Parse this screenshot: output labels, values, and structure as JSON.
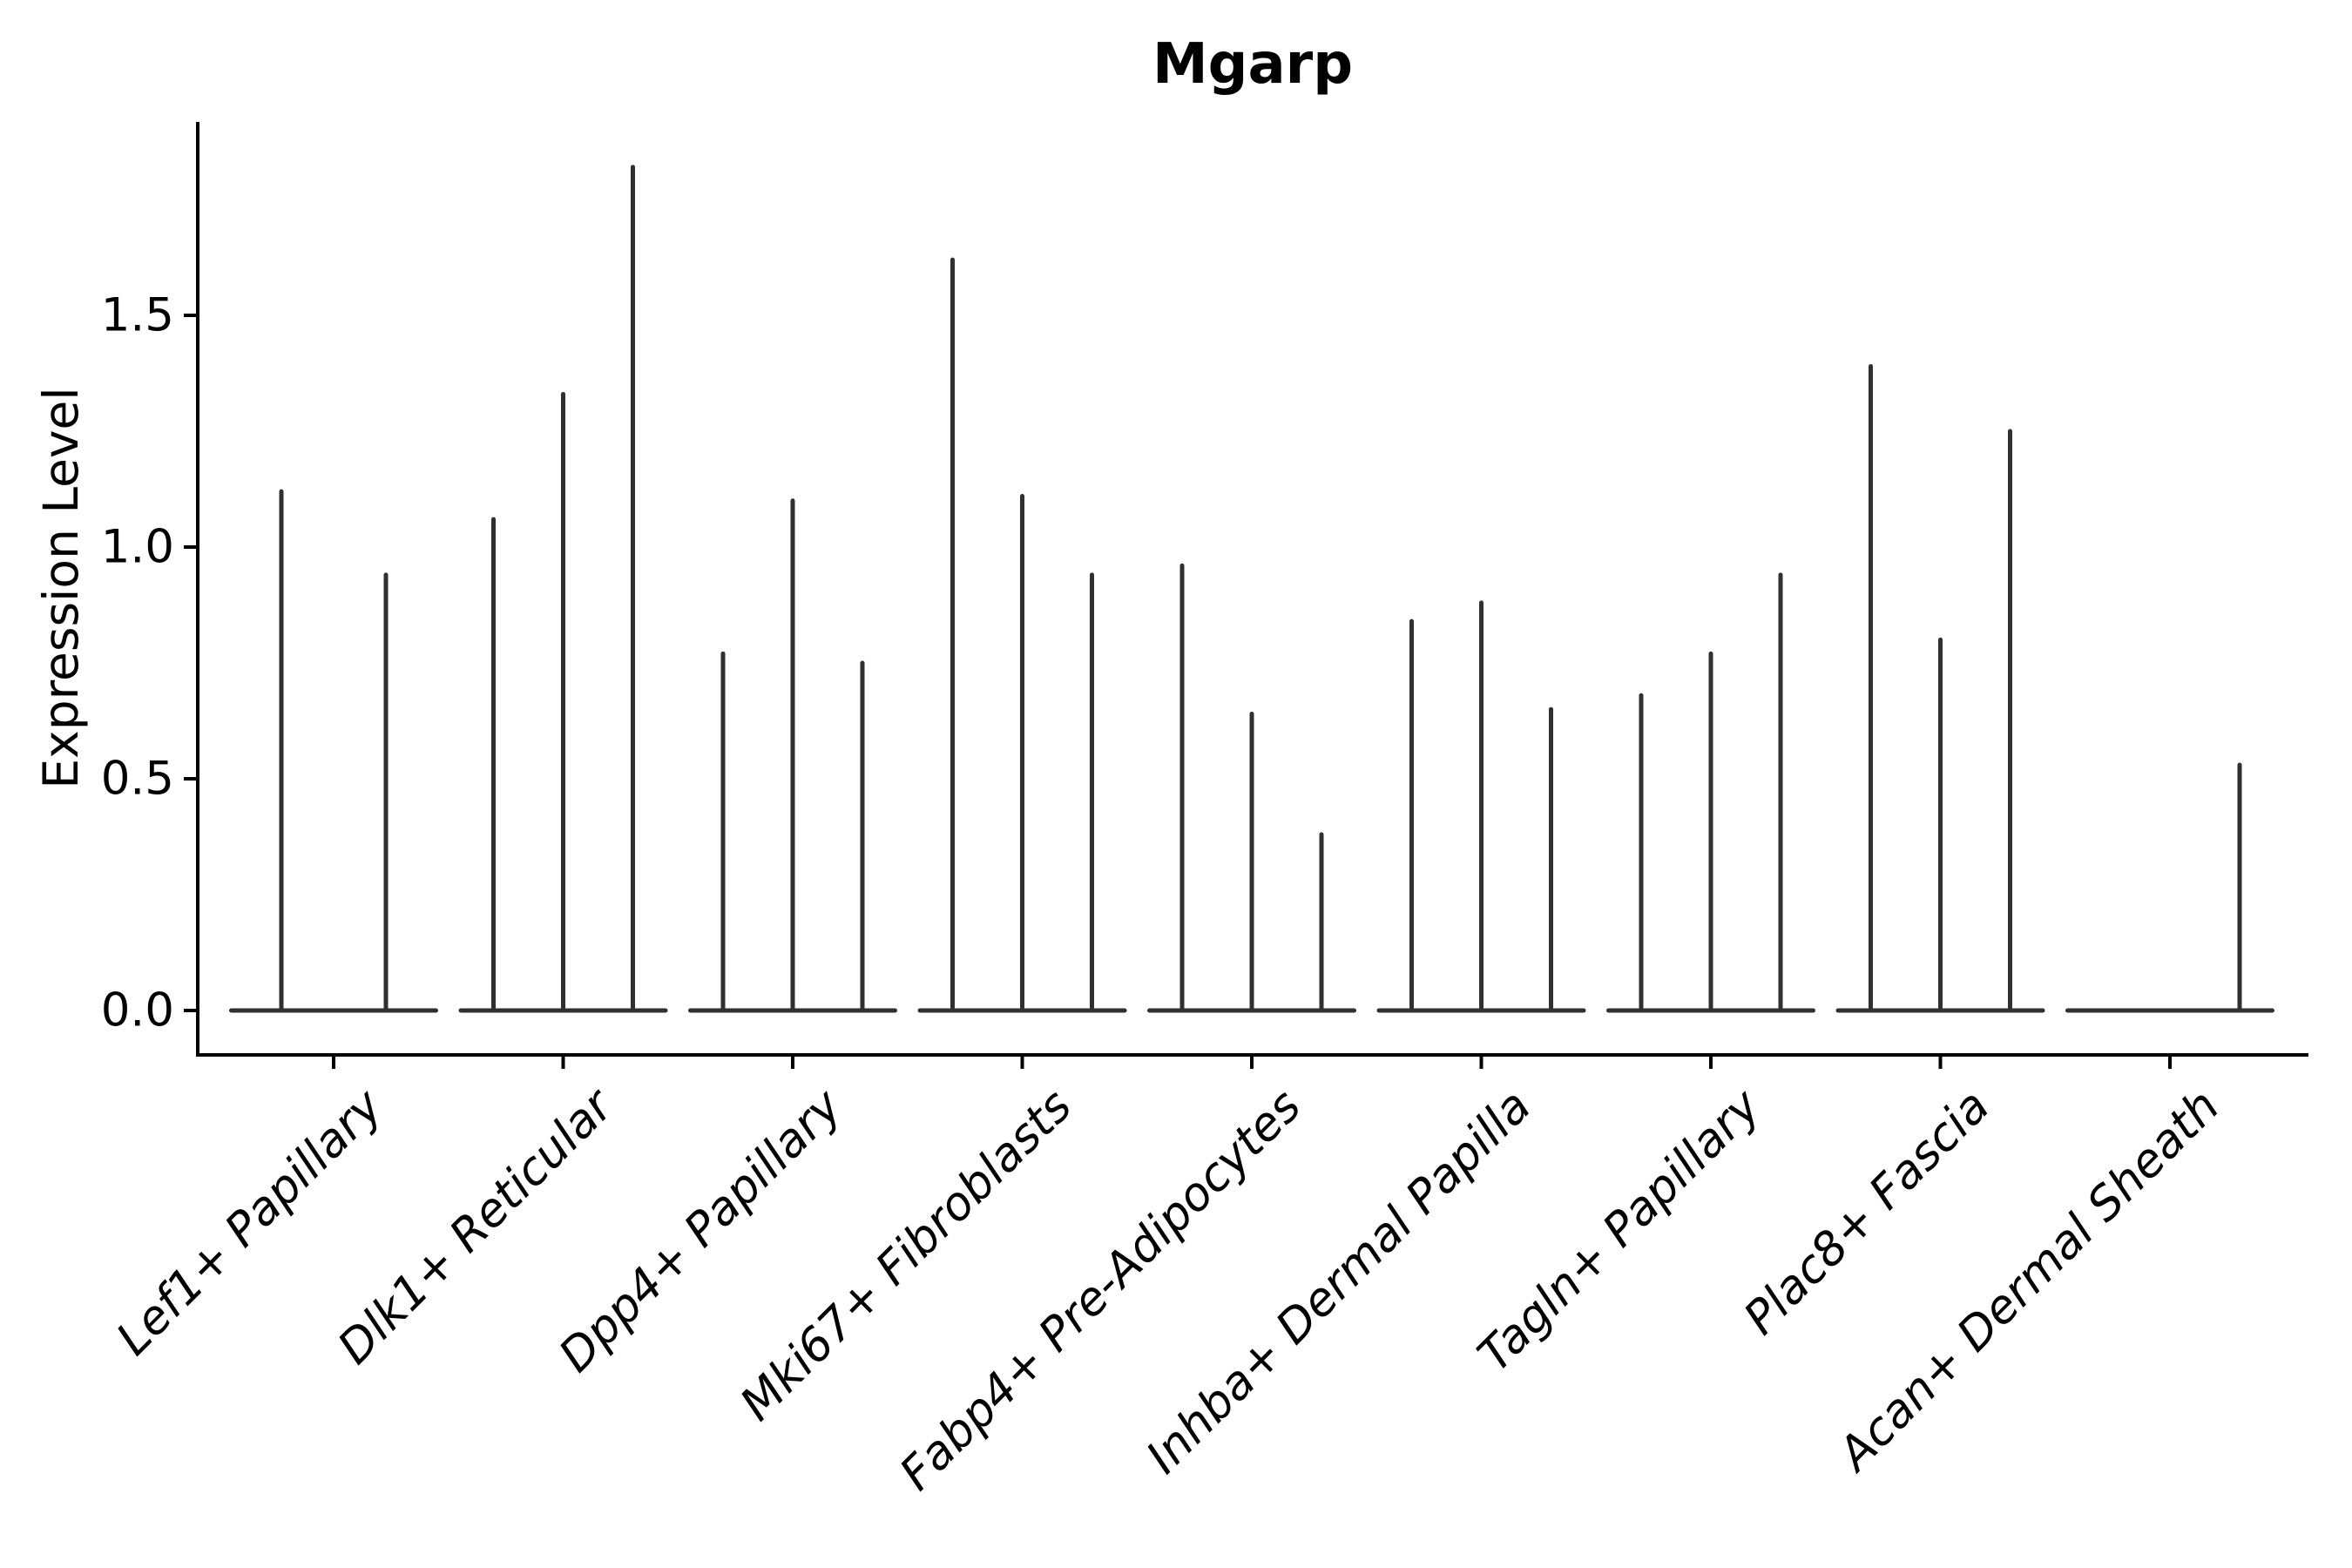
{
  "chart_data": {
    "type": "violin",
    "title": "Mgarp",
    "xlabel": "",
    "ylabel": "Expression Level",
    "ylim": [
      -0.096,
      1.917
    ],
    "grid": false,
    "legend": null,
    "yticks": [
      {
        "label": "0.0",
        "value": 0.0
      },
      {
        "label": "0.5",
        "value": 0.5
      },
      {
        "label": "1.0",
        "value": 1.0
      },
      {
        "label": "1.5",
        "value": 1.5
      }
    ],
    "categories": [
      "Lef1+ Papillary",
      "Dlk1+ Reticular",
      "Dpp4+ Papillary",
      "Mki67+ Fibroblasts",
      "Fabp4+ Pre-Adipocytes",
      "Inhba+ Dermal Papilla",
      "Tagln+ Papillary",
      "Plac8+ Fascia",
      "Acan+ Dermal Sheath"
    ],
    "groups": [
      {
        "label": "Lef1+ Papillary",
        "violin_maxima": [
          1.12,
          0.94
        ]
      },
      {
        "label": "Dlk1+ Reticular",
        "violin_maxima": [
          1.06,
          1.33,
          1.82
        ]
      },
      {
        "label": "Dpp4+ Papillary",
        "violin_maxima": [
          0.77,
          1.1,
          0.75
        ]
      },
      {
        "label": "Mki67+ Fibroblasts",
        "violin_maxima": [
          1.62,
          1.11,
          0.94
        ]
      },
      {
        "label": "Fabp4+ Pre-Adipocytes",
        "violin_maxima": [
          0.96,
          0.64,
          0.38
        ]
      },
      {
        "label": "Inhba+ Dermal Papilla",
        "violin_maxima": [
          0.84,
          0.88,
          0.65
        ]
      },
      {
        "label": "Tagln+ Papillary",
        "violin_maxima": [
          0.68,
          0.77,
          0.94
        ]
      },
      {
        "label": "Plac8+ Fascia",
        "violin_maxima": [
          1.39,
          0.8,
          1.25
        ]
      },
      {
        "label": "Acan+ Dermal Sheath",
        "violin_maxima": [
          0.0,
          0.0,
          0.53
        ]
      }
    ],
    "violin_distribution": "all mass at 0 with thin spike to maximum",
    "colors": {
      "violin": "#303030",
      "spine": "#000000",
      "text": "#000000",
      "background": "#ffffff"
    }
  }
}
